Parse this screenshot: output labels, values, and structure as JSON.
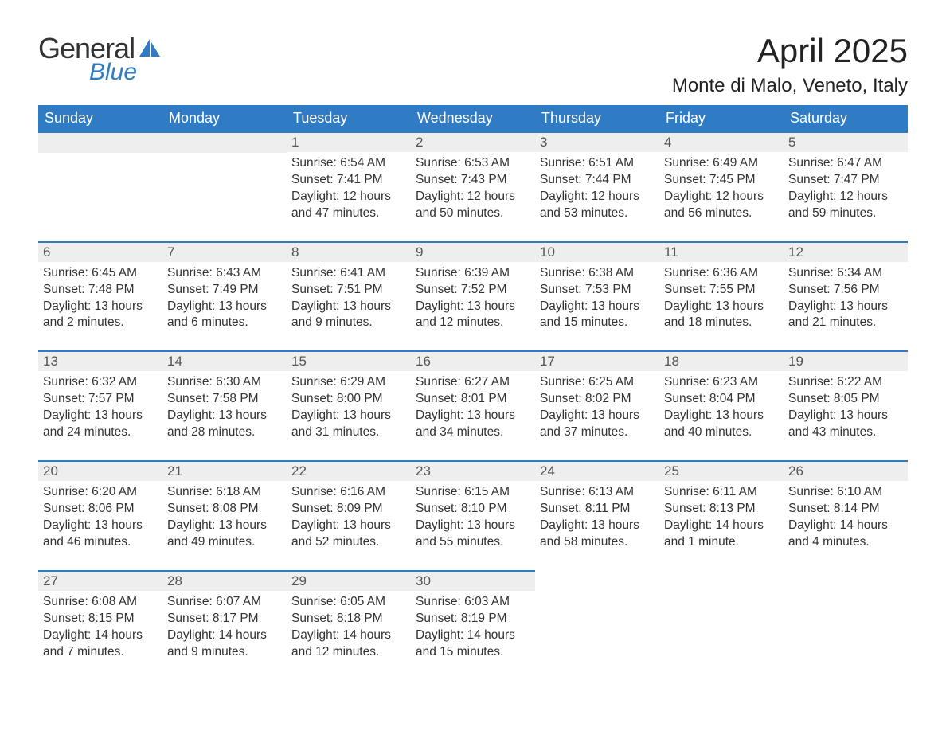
{
  "logo": {
    "general": "General",
    "blue": "Blue"
  },
  "title": "April 2025",
  "location": "Monte di Malo, Veneto, Italy",
  "colors": {
    "header_bg": "#2f7cc4",
    "header_text": "#ffffff",
    "daynum_bg": "#eeeeee",
    "border": "#2f7cc4",
    "text": "#333333",
    "logo_blue": "#2f7cc4"
  },
  "weekdays": [
    "Sunday",
    "Monday",
    "Tuesday",
    "Wednesday",
    "Thursday",
    "Friday",
    "Saturday"
  ],
  "weeks": [
    [
      {
        "blank": true
      },
      {
        "blank": true
      },
      {
        "day": "1",
        "sunrise": "Sunrise: 6:54 AM",
        "sunset": "Sunset: 7:41 PM",
        "daylight": "Daylight: 12 hours and 47 minutes."
      },
      {
        "day": "2",
        "sunrise": "Sunrise: 6:53 AM",
        "sunset": "Sunset: 7:43 PM",
        "daylight": "Daylight: 12 hours and 50 minutes."
      },
      {
        "day": "3",
        "sunrise": "Sunrise: 6:51 AM",
        "sunset": "Sunset: 7:44 PM",
        "daylight": "Daylight: 12 hours and 53 minutes."
      },
      {
        "day": "4",
        "sunrise": "Sunrise: 6:49 AM",
        "sunset": "Sunset: 7:45 PM",
        "daylight": "Daylight: 12 hours and 56 minutes."
      },
      {
        "day": "5",
        "sunrise": "Sunrise: 6:47 AM",
        "sunset": "Sunset: 7:47 PM",
        "daylight": "Daylight: 12 hours and 59 minutes."
      }
    ],
    [
      {
        "day": "6",
        "sunrise": "Sunrise: 6:45 AM",
        "sunset": "Sunset: 7:48 PM",
        "daylight": "Daylight: 13 hours and 2 minutes."
      },
      {
        "day": "7",
        "sunrise": "Sunrise: 6:43 AM",
        "sunset": "Sunset: 7:49 PM",
        "daylight": "Daylight: 13 hours and 6 minutes."
      },
      {
        "day": "8",
        "sunrise": "Sunrise: 6:41 AM",
        "sunset": "Sunset: 7:51 PM",
        "daylight": "Daylight: 13 hours and 9 minutes."
      },
      {
        "day": "9",
        "sunrise": "Sunrise: 6:39 AM",
        "sunset": "Sunset: 7:52 PM",
        "daylight": "Daylight: 13 hours and 12 minutes."
      },
      {
        "day": "10",
        "sunrise": "Sunrise: 6:38 AM",
        "sunset": "Sunset: 7:53 PM",
        "daylight": "Daylight: 13 hours and 15 minutes."
      },
      {
        "day": "11",
        "sunrise": "Sunrise: 6:36 AM",
        "sunset": "Sunset: 7:55 PM",
        "daylight": "Daylight: 13 hours and 18 minutes."
      },
      {
        "day": "12",
        "sunrise": "Sunrise: 6:34 AM",
        "sunset": "Sunset: 7:56 PM",
        "daylight": "Daylight: 13 hours and 21 minutes."
      }
    ],
    [
      {
        "day": "13",
        "sunrise": "Sunrise: 6:32 AM",
        "sunset": "Sunset: 7:57 PM",
        "daylight": "Daylight: 13 hours and 24 minutes."
      },
      {
        "day": "14",
        "sunrise": "Sunrise: 6:30 AM",
        "sunset": "Sunset: 7:58 PM",
        "daylight": "Daylight: 13 hours and 28 minutes."
      },
      {
        "day": "15",
        "sunrise": "Sunrise: 6:29 AM",
        "sunset": "Sunset: 8:00 PM",
        "daylight": "Daylight: 13 hours and 31 minutes."
      },
      {
        "day": "16",
        "sunrise": "Sunrise: 6:27 AM",
        "sunset": "Sunset: 8:01 PM",
        "daylight": "Daylight: 13 hours and 34 minutes."
      },
      {
        "day": "17",
        "sunrise": "Sunrise: 6:25 AM",
        "sunset": "Sunset: 8:02 PM",
        "daylight": "Daylight: 13 hours and 37 minutes."
      },
      {
        "day": "18",
        "sunrise": "Sunrise: 6:23 AM",
        "sunset": "Sunset: 8:04 PM",
        "daylight": "Daylight: 13 hours and 40 minutes."
      },
      {
        "day": "19",
        "sunrise": "Sunrise: 6:22 AM",
        "sunset": "Sunset: 8:05 PM",
        "daylight": "Daylight: 13 hours and 43 minutes."
      }
    ],
    [
      {
        "day": "20",
        "sunrise": "Sunrise: 6:20 AM",
        "sunset": "Sunset: 8:06 PM",
        "daylight": "Daylight: 13 hours and 46 minutes."
      },
      {
        "day": "21",
        "sunrise": "Sunrise: 6:18 AM",
        "sunset": "Sunset: 8:08 PM",
        "daylight": "Daylight: 13 hours and 49 minutes."
      },
      {
        "day": "22",
        "sunrise": "Sunrise: 6:16 AM",
        "sunset": "Sunset: 8:09 PM",
        "daylight": "Daylight: 13 hours and 52 minutes."
      },
      {
        "day": "23",
        "sunrise": "Sunrise: 6:15 AM",
        "sunset": "Sunset: 8:10 PM",
        "daylight": "Daylight: 13 hours and 55 minutes."
      },
      {
        "day": "24",
        "sunrise": "Sunrise: 6:13 AM",
        "sunset": "Sunset: 8:11 PM",
        "daylight": "Daylight: 13 hours and 58 minutes."
      },
      {
        "day": "25",
        "sunrise": "Sunrise: 6:11 AM",
        "sunset": "Sunset: 8:13 PM",
        "daylight": "Daylight: 14 hours and 1 minute."
      },
      {
        "day": "26",
        "sunrise": "Sunrise: 6:10 AM",
        "sunset": "Sunset: 8:14 PM",
        "daylight": "Daylight: 14 hours and 4 minutes."
      }
    ],
    [
      {
        "day": "27",
        "sunrise": "Sunrise: 6:08 AM",
        "sunset": "Sunset: 8:15 PM",
        "daylight": "Daylight: 14 hours and 7 minutes."
      },
      {
        "day": "28",
        "sunrise": "Sunrise: 6:07 AM",
        "sunset": "Sunset: 8:17 PM",
        "daylight": "Daylight: 14 hours and 9 minutes."
      },
      {
        "day": "29",
        "sunrise": "Sunrise: 6:05 AM",
        "sunset": "Sunset: 8:18 PM",
        "daylight": "Daylight: 14 hours and 12 minutes."
      },
      {
        "day": "30",
        "sunrise": "Sunrise: 6:03 AM",
        "sunset": "Sunset: 8:19 PM",
        "daylight": "Daylight: 14 hours and 15 minutes."
      },
      {
        "blank": true,
        "noborder": true
      },
      {
        "blank": true,
        "noborder": true
      },
      {
        "blank": true,
        "noborder": true
      }
    ]
  ]
}
